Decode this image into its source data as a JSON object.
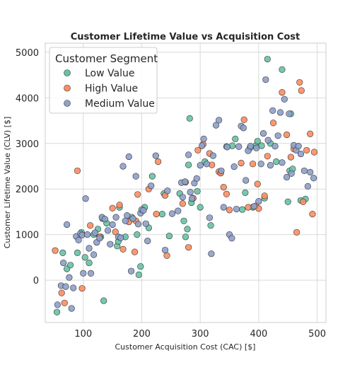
{
  "chart_data": {
    "type": "scatter",
    "title": "Customer Lifetime Value vs Acquisition Cost",
    "xlabel": "Customer Acquisition Cost (CAC) [$]",
    "ylabel": "Customer Lifetime Value (CLV) [$]",
    "xlim": [
      35,
      515
    ],
    "ylim": [
      -930,
      5200
    ],
    "x_ticks": [
      100,
      200,
      300,
      400,
      500
    ],
    "y_ticks": [
      0,
      1000,
      2000,
      3000,
      4000,
      5000
    ],
    "grid": true,
    "legend": {
      "title": "Customer Segment",
      "position": "upper-left"
    },
    "series": [
      {
        "name": "Low Value",
        "color": "#66c2a5",
        "points": [
          [
            55,
            -700
          ],
          [
            65,
            600
          ],
          [
            72,
            250
          ],
          [
            78,
            330
          ],
          [
            90,
            600
          ],
          [
            97,
            1050
          ],
          [
            103,
            500
          ],
          [
            110,
            380
          ],
          [
            118,
            1000
          ],
          [
            125,
            1120
          ],
          [
            130,
            950
          ],
          [
            133,
            1350
          ],
          [
            135,
            -450
          ],
          [
            140,
            1250
          ],
          [
            158,
            750
          ],
          [
            160,
            850
          ],
          [
            162,
            1600
          ],
          [
            172,
            950
          ],
          [
            183,
            1380
          ],
          [
            192,
            1000
          ],
          [
            195,
            120
          ],
          [
            198,
            300
          ],
          [
            205,
            1600
          ],
          [
            212,
            1150
          ],
          [
            218,
            2280
          ],
          [
            235,
            1450
          ],
          [
            238,
            1900
          ],
          [
            247,
            970
          ],
          [
            265,
            1900
          ],
          [
            272,
            1300
          ],
          [
            275,
            950
          ],
          [
            278,
            1120
          ],
          [
            280,
            2530
          ],
          [
            282,
            3550
          ],
          [
            285,
            1700
          ],
          [
            295,
            1950
          ],
          [
            300,
            1600
          ],
          [
            308,
            2600
          ],
          [
            318,
            1200
          ],
          [
            335,
            2350
          ],
          [
            345,
            2930
          ],
          [
            355,
            2950
          ],
          [
            360,
            3100
          ],
          [
            372,
            1550
          ],
          [
            377,
            1920
          ],
          [
            385,
            2900
          ],
          [
            390,
            1600
          ],
          [
            395,
            2950
          ],
          [
            398,
            3050
          ],
          [
            405,
            2950
          ],
          [
            410,
            1800
          ],
          [
            415,
            4850
          ],
          [
            420,
            3000
          ],
          [
            430,
            2600
          ],
          [
            440,
            4620
          ],
          [
            450,
            1720
          ],
          [
            453,
            2400
          ],
          [
            455,
            3650
          ],
          [
            458,
            2440
          ],
          [
            472,
            1750
          ],
          [
            480,
            1780
          ]
        ]
      },
      {
        "name": "High Value",
        "color": "#fc8d62",
        "points": [
          [
            52,
            650
          ],
          [
            68,
            -500
          ],
          [
            63,
            -280
          ],
          [
            90,
            2400
          ],
          [
            98,
            -180
          ],
          [
            112,
            1200
          ],
          [
            128,
            950
          ],
          [
            150,
            1580
          ],
          [
            155,
            1060
          ],
          [
            162,
            1650
          ],
          [
            168,
            680
          ],
          [
            178,
            1280
          ],
          [
            188,
            620
          ],
          [
            190,
            1300
          ],
          [
            193,
            1880
          ],
          [
            212,
            2000
          ],
          [
            225,
            1450
          ],
          [
            228,
            2600
          ],
          [
            240,
            1860
          ],
          [
            243,
            540
          ],
          [
            270,
            1680
          ],
          [
            275,
            2150
          ],
          [
            280,
            720
          ],
          [
            288,
            1800
          ],
          [
            296,
            2850
          ],
          [
            305,
            2980
          ],
          [
            316,
            2780
          ],
          [
            320,
            2530
          ],
          [
            332,
            2380
          ],
          [
            335,
            2350
          ],
          [
            340,
            2040
          ],
          [
            345,
            1890
          ],
          [
            350,
            1540
          ],
          [
            370,
            2570
          ],
          [
            375,
            3520
          ],
          [
            382,
            1600
          ],
          [
            390,
            2550
          ],
          [
            395,
            1630
          ],
          [
            398,
            2110
          ],
          [
            400,
            1570
          ],
          [
            410,
            1850
          ],
          [
            415,
            2720
          ],
          [
            425,
            3450
          ],
          [
            440,
            4120
          ],
          [
            448,
            3190
          ],
          [
            455,
            2700
          ],
          [
            460,
            2880
          ],
          [
            465,
            1050
          ],
          [
            470,
            4340
          ],
          [
            473,
            4160
          ],
          [
            476,
            1720
          ],
          [
            482,
            2850
          ],
          [
            488,
            3210
          ],
          [
            492,
            1450
          ],
          [
            495,
            2810
          ]
        ]
      },
      {
        "name": "Medium Value",
        "color": "#8da0cb",
        "points": [
          [
            56,
            -540
          ],
          [
            62,
            -120
          ],
          [
            66,
            380
          ],
          [
            70,
            -140
          ],
          [
            72,
            1220
          ],
          [
            76,
            60
          ],
          [
            80,
            -620
          ],
          [
            83,
            -170
          ],
          [
            88,
            960
          ],
          [
            92,
            880
          ],
          [
            95,
            1020
          ],
          [
            98,
            990
          ],
          [
            100,
            150
          ],
          [
            104,
            1790
          ],
          [
            107,
            1000
          ],
          [
            110,
            700
          ],
          [
            113,
            150
          ],
          [
            118,
            560
          ],
          [
            120,
            1040
          ],
          [
            123,
            830
          ],
          [
            128,
            920
          ],
          [
            132,
            1380
          ],
          [
            137,
            1340
          ],
          [
            142,
            1090
          ],
          [
            146,
            790
          ],
          [
            150,
            1220
          ],
          [
            156,
            1380
          ],
          [
            160,
            950
          ],
          [
            164,
            930
          ],
          [
            168,
            2500
          ],
          [
            172,
            1300
          ],
          [
            175,
            1420
          ],
          [
            178,
            2710
          ],
          [
            182,
            200
          ],
          [
            185,
            1350
          ],
          [
            190,
            2280
          ],
          [
            194,
            1230
          ],
          [
            198,
            1470
          ],
          [
            200,
            1550
          ],
          [
            203,
            1530
          ],
          [
            207,
            1240
          ],
          [
            210,
            860
          ],
          [
            216,
            2070
          ],
          [
            224,
            2730
          ],
          [
            240,
            660
          ],
          [
            244,
            1960
          ],
          [
            252,
            1460
          ],
          [
            262,
            1520
          ],
          [
            268,
            2140
          ],
          [
            270,
            1820
          ],
          [
            274,
            2160
          ],
          [
            280,
            2750
          ],
          [
            283,
            1930
          ],
          [
            286,
            1790
          ],
          [
            290,
            2130
          ],
          [
            294,
            2230
          ],
          [
            300,
            2520
          ],
          [
            303,
            2950
          ],
          [
            306,
            3100
          ],
          [
            311,
            2550
          ],
          [
            316,
            1370
          ],
          [
            319,
            580
          ],
          [
            322,
            2730
          ],
          [
            327,
            3400
          ],
          [
            332,
            3510
          ],
          [
            336,
            2400
          ],
          [
            340,
            1600
          ],
          [
            346,
            2920
          ],
          [
            350,
            1000
          ],
          [
            354,
            920
          ],
          [
            358,
            2490
          ],
          [
            362,
            1560
          ],
          [
            366,
            2930
          ],
          [
            370,
            3380
          ],
          [
            374,
            3340
          ],
          [
            378,
            2190
          ],
          [
            382,
            2840
          ],
          [
            386,
            2940
          ],
          [
            392,
            1620
          ],
          [
            396,
            2900
          ],
          [
            400,
            1730
          ],
          [
            404,
            2550
          ],
          [
            408,
            3220
          ],
          [
            412,
            4400
          ],
          [
            416,
            3070
          ],
          [
            420,
            2520
          ],
          [
            424,
            3720
          ],
          [
            428,
            2940
          ],
          [
            433,
            3170
          ],
          [
            437,
            3680
          ],
          [
            440,
            2580
          ],
          [
            444,
            3970
          ],
          [
            448,
            2260
          ],
          [
            452,
            3650
          ],
          [
            456,
            2340
          ],
          [
            460,
            2960
          ],
          [
            464,
            2850
          ],
          [
            468,
            2940
          ],
          [
            472,
            2770
          ],
          [
            478,
            2400
          ],
          [
            484,
            2060
          ],
          [
            488,
            2370
          ],
          [
            494,
            2240
          ]
        ]
      }
    ]
  }
}
